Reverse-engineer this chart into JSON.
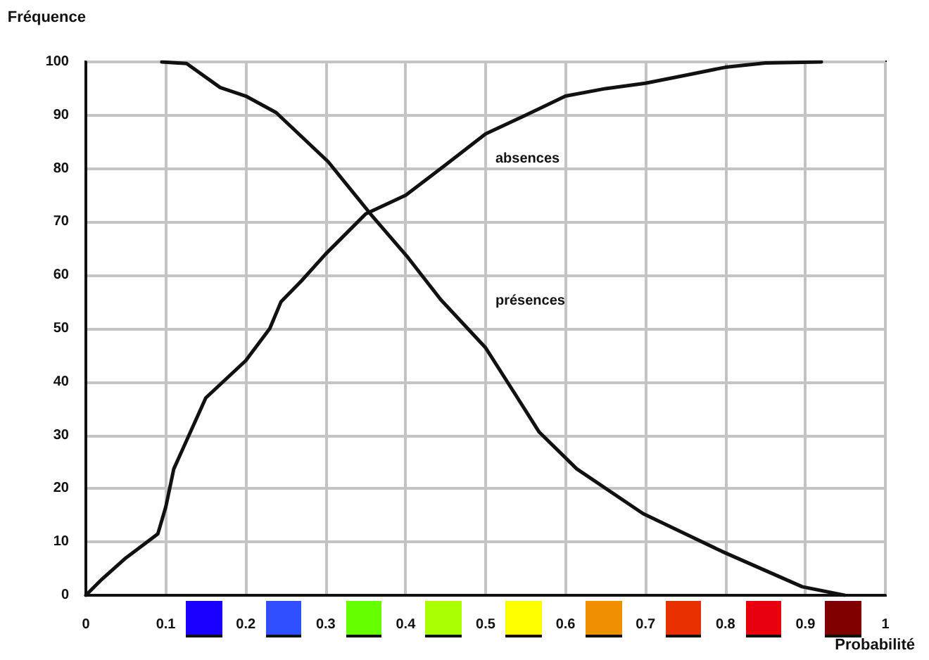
{
  "chart_data": {
    "type": "line",
    "xlabel": "Probabilité",
    "ylabel": "Fréquence",
    "xlim": [
      0,
      1
    ],
    "xticks": [
      0,
      0.1,
      0.2,
      0.3,
      0.4,
      0.5,
      0.6,
      0.7,
      0.8,
      0.9,
      1
    ],
    "ylim": [
      0,
      100
    ],
    "yticks": [
      0,
      10,
      20,
      30,
      40,
      50,
      60,
      70,
      80,
      90,
      100
    ],
    "grid": true,
    "marker": "none",
    "line_style": "solid",
    "series": [
      {
        "name": "absences",
        "color": "#111111",
        "x": [
          0,
          0.02,
          0.05,
          0.09,
          0.1,
          0.11,
          0.15,
          0.2,
          0.23,
          0.244,
          0.27,
          0.3,
          0.35,
          0.4,
          0.45,
          0.5,
          0.55,
          0.6,
          0.65,
          0.7,
          0.75,
          0.8,
          0.85,
          0.92
        ],
        "values": [
          0,
          3,
          7,
          11.5,
          16.6,
          23.7,
          37,
          44,
          50,
          55,
          59,
          64,
          71.5,
          75,
          80.7,
          86.5,
          90,
          93.6,
          95,
          96,
          97.5,
          99,
          99.8,
          100
        ]
      },
      {
        "name": "présences",
        "color": "#111111",
        "x": [
          0.095,
          0.126,
          0.168,
          0.2,
          0.238,
          0.303,
          0.356,
          0.403,
          0.444,
          0.5,
          0.537,
          0.567,
          0.614,
          0.697,
          0.796,
          0.896,
          0.949
        ],
        "values": [
          100,
          99.7,
          95.2,
          93.6,
          90.5,
          81.3,
          71.5,
          63.3,
          55.4,
          46.4,
          37.7,
          30.6,
          23.7,
          15.3,
          8.2,
          1.6,
          0
        ]
      }
    ]
  }
}
